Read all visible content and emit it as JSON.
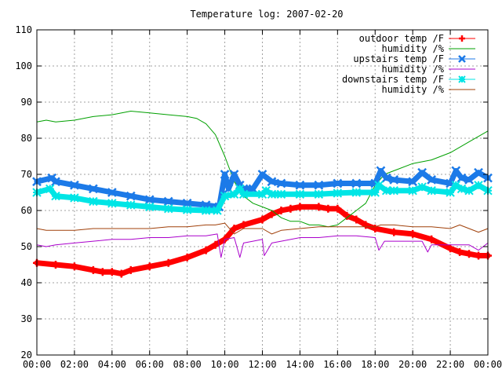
{
  "chart_data": {
    "type": "line",
    "title": "Temperature log: 2007-02-20",
    "xlabel": "",
    "ylabel": "",
    "xlim": [
      "00:00",
      "24:00"
    ],
    "ylim": [
      20,
      110
    ],
    "x_ticks": [
      "00:00",
      "02:00",
      "04:00",
      "06:00",
      "08:00",
      "10:00",
      "12:00",
      "14:00",
      "16:00",
      "18:00",
      "20:00",
      "22:00",
      "00:00"
    ],
    "y_ticks": [
      20,
      30,
      40,
      50,
      60,
      70,
      80,
      90,
      100,
      110
    ],
    "grid": true,
    "legend_position": "top-right",
    "series": [
      {
        "name": "outdoor temp /F",
        "color": "#ff0000",
        "marker": "plus",
        "x": [
          0,
          1,
          2,
          3,
          3.5,
          4,
          4.5,
          5,
          6,
          7,
          8,
          9,
          9.5,
          10,
          10.5,
          11,
          12,
          12.5,
          13,
          13.5,
          14,
          15,
          15.5,
          16,
          16.5,
          17,
          17.5,
          18,
          19,
          20,
          21,
          22,
          22.5,
          23,
          23.5,
          24
        ],
        "y": [
          45.5,
          45,
          44.5,
          43.5,
          43,
          43,
          42.5,
          43.5,
          44.5,
          45.5,
          47,
          49,
          50.5,
          52,
          55,
          56,
          57.5,
          59,
          60,
          60.5,
          61,
          61,
          60.5,
          60.5,
          58.5,
          57.5,
          56,
          55,
          54,
          53.5,
          52,
          49.5,
          48.5,
          48,
          47.5,
          47.5
        ]
      },
      {
        "name": "humidity /%",
        "color": "#00a000",
        "marker": "none",
        "x": [
          0,
          0.5,
          1,
          2,
          3,
          4,
          5,
          6,
          7,
          8,
          8.5,
          9,
          9.5,
          10,
          10.5,
          11,
          11.5,
          12,
          12.5,
          13,
          13.5,
          14,
          14.5,
          15,
          15.5,
          16,
          16.5,
          17,
          17.5,
          18,
          18.5,
          19,
          20,
          21,
          22,
          23,
          24
        ],
        "y": [
          84.5,
          85,
          84.5,
          85,
          86,
          86.5,
          87.5,
          87,
          86.5,
          86,
          85.5,
          84,
          81,
          75,
          68,
          64,
          62,
          61,
          60,
          58,
          57,
          57,
          56,
          56,
          55.5,
          56,
          58,
          60,
          62,
          67,
          70,
          71,
          73,
          74,
          76,
          79,
          82
        ]
      },
      {
        "name": "upstairs temp /F",
        "color": "#1c7ae8",
        "marker": "x",
        "x": [
          0,
          0.8,
          1,
          2,
          3,
          4,
          5,
          6,
          7,
          8,
          9,
          9.7,
          10,
          10.2,
          10.5,
          10.8,
          11,
          11.5,
          12,
          12.5,
          13,
          14,
          15,
          16,
          17,
          18,
          18.3,
          18.6,
          19,
          20,
          20.5,
          21,
          22,
          22.3,
          22.6,
          23,
          23.5,
          24
        ],
        "y": [
          68,
          69,
          68,
          67,
          66,
          65,
          64,
          63,
          62.5,
          62,
          61.5,
          61,
          70,
          66,
          70,
          67,
          66,
          66,
          70,
          68,
          67.5,
          67,
          67,
          67.5,
          67.5,
          67.5,
          71,
          69,
          68.5,
          68,
          70.5,
          68.5,
          67.5,
          71,
          69,
          68.5,
          70.5,
          69
        ]
      },
      {
        "name": "humidity /%",
        "color": "#aa00cc",
        "marker": "none",
        "x": [
          0,
          0.5,
          1,
          2,
          3,
          4,
          5,
          6,
          7,
          8,
          9,
          9.6,
          9.8,
          10,
          10.5,
          10.8,
          11,
          11.5,
          12,
          12.1,
          12.5,
          13,
          14,
          15,
          16,
          17,
          18,
          18.2,
          18.5,
          19,
          20,
          20.5,
          20.8,
          21,
          22,
          23,
          23.5,
          24
        ],
        "y": [
          50.5,
          50,
          50.5,
          51,
          51.5,
          52,
          52,
          52.5,
          52.5,
          53,
          53,
          53.5,
          47,
          52,
          52.5,
          47,
          51,
          51.5,
          52,
          47.5,
          51,
          51.5,
          52.5,
          52.5,
          53,
          53,
          52.5,
          49,
          51.5,
          51.5,
          51.5,
          51.5,
          48.5,
          50.5,
          50.5,
          50.5,
          49,
          51
        ]
      },
      {
        "name": "downstairs temp /F",
        "color": "#00e5e5",
        "marker": "asterisk",
        "x": [
          0,
          0.7,
          1,
          2,
          3,
          4,
          5,
          6,
          7,
          8,
          9,
          9.6,
          10,
          10.5,
          10.8,
          11,
          12,
          12.2,
          12.5,
          13,
          14,
          15,
          16,
          17,
          18,
          18.2,
          18.6,
          19,
          20,
          20.5,
          21,
          22,
          22.3,
          22.6,
          23,
          23.5,
          24
        ],
        "y": [
          65,
          66,
          64,
          63.5,
          62.5,
          62,
          61.5,
          61,
          60.5,
          60.2,
          60,
          60,
          64,
          64.5,
          66,
          64.5,
          64.5,
          65.5,
          64.5,
          64.5,
          64.5,
          64.5,
          64.8,
          65,
          65,
          67,
          65.5,
          65.5,
          65.5,
          66.5,
          65.5,
          65,
          67,
          66,
          65.5,
          67,
          65.5
        ]
      },
      {
        "name": "humidity /%",
        "color": "#a0400a",
        "marker": "none",
        "x": [
          0,
          0.5,
          1,
          2,
          3,
          4,
          5,
          6,
          7,
          8,
          9,
          9.5,
          10,
          10.5,
          11,
          12,
          12.5,
          13,
          14,
          15,
          16,
          17,
          18,
          18.3,
          19,
          20,
          21,
          22,
          22.5,
          23,
          23.5,
          24
        ],
        "y": [
          55,
          54.5,
          54.5,
          54.5,
          55,
          55,
          55,
          55,
          55.5,
          55.5,
          56,
          56,
          56.5,
          53.5,
          55,
          55,
          53.5,
          54.5,
          55,
          55.5,
          55.5,
          55.5,
          55.5,
          56,
          56,
          55.5,
          55.5,
          55,
          56,
          55,
          54,
          55
        ]
      }
    ]
  }
}
